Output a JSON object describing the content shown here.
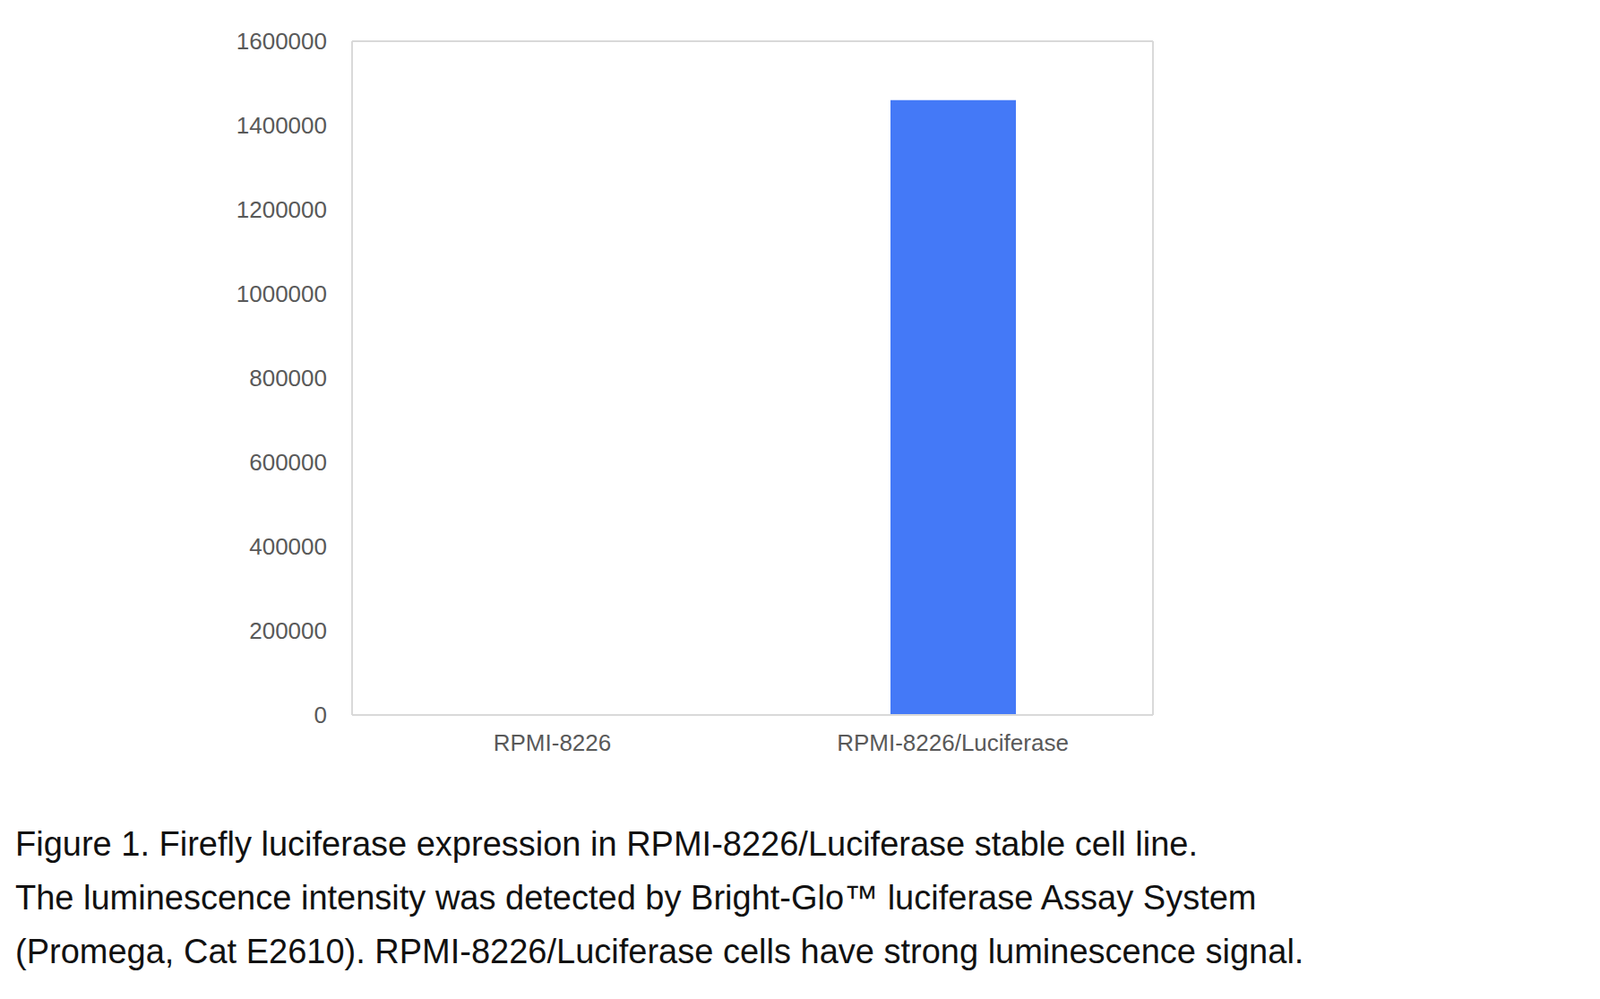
{
  "chart_data": {
    "type": "bar",
    "categories": [
      "RPMI-8226",
      "RPMI-8226/Luciferase"
    ],
    "values": [
      0,
      1460000
    ],
    "color": "#4479F7",
    "ylim": [
      0,
      1600000
    ],
    "yticks": [
      0,
      200000,
      400000,
      600000,
      800000,
      1000000,
      1200000,
      1400000,
      1600000
    ],
    "grid": false,
    "caption": [
      "Figure 1. Firefly luciferase expression in RPMI-8226/Luciferase stable cell line.",
      "The luminescence intensity was detected by Bright-Glo™ luciferase Assay System",
      "(Promega, Cat E2610). RPMI-8226/Luciferase cells have strong luminescence signal."
    ]
  }
}
